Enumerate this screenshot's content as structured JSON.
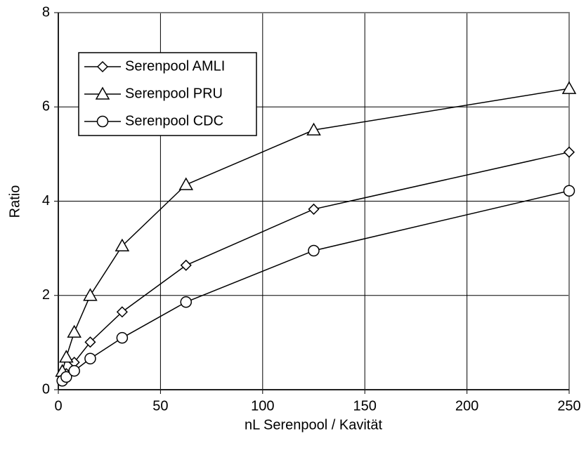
{
  "chart_data": {
    "type": "line",
    "x_label": "nL Serenpool / Kavität",
    "y_label": "Ratio",
    "x": [
      1.95,
      3.9,
      7.8,
      15.625,
      31.25,
      62.5,
      125,
      250
    ],
    "series": [
      {
        "name": "Serenpool AMLI",
        "marker": "diamond",
        "color": "#000000",
        "values": [
          0.22,
          0.34,
          0.58,
          1.01,
          1.65,
          2.64,
          3.83,
          5.04
        ]
      },
      {
        "name": "Serenpool PRU",
        "marker": "triangle",
        "color": "#000000",
        "values": [
          0.39,
          0.69,
          1.22,
          2.0,
          3.05,
          4.35,
          5.51,
          6.39
        ]
      },
      {
        "name": "Serenpool CDC",
        "marker": "circle",
        "color": "#000000",
        "values": [
          0.19,
          0.27,
          0.4,
          0.66,
          1.1,
          1.86,
          2.95,
          4.22
        ]
      }
    ],
    "xlim": [
      0,
      250
    ],
    "xticks": [
      0,
      50,
      100,
      150,
      200,
      250
    ],
    "ylim": [
      0,
      8
    ],
    "yticks": [
      0,
      2,
      4,
      6,
      8
    ],
    "grid": true,
    "legend": "upper left"
  }
}
